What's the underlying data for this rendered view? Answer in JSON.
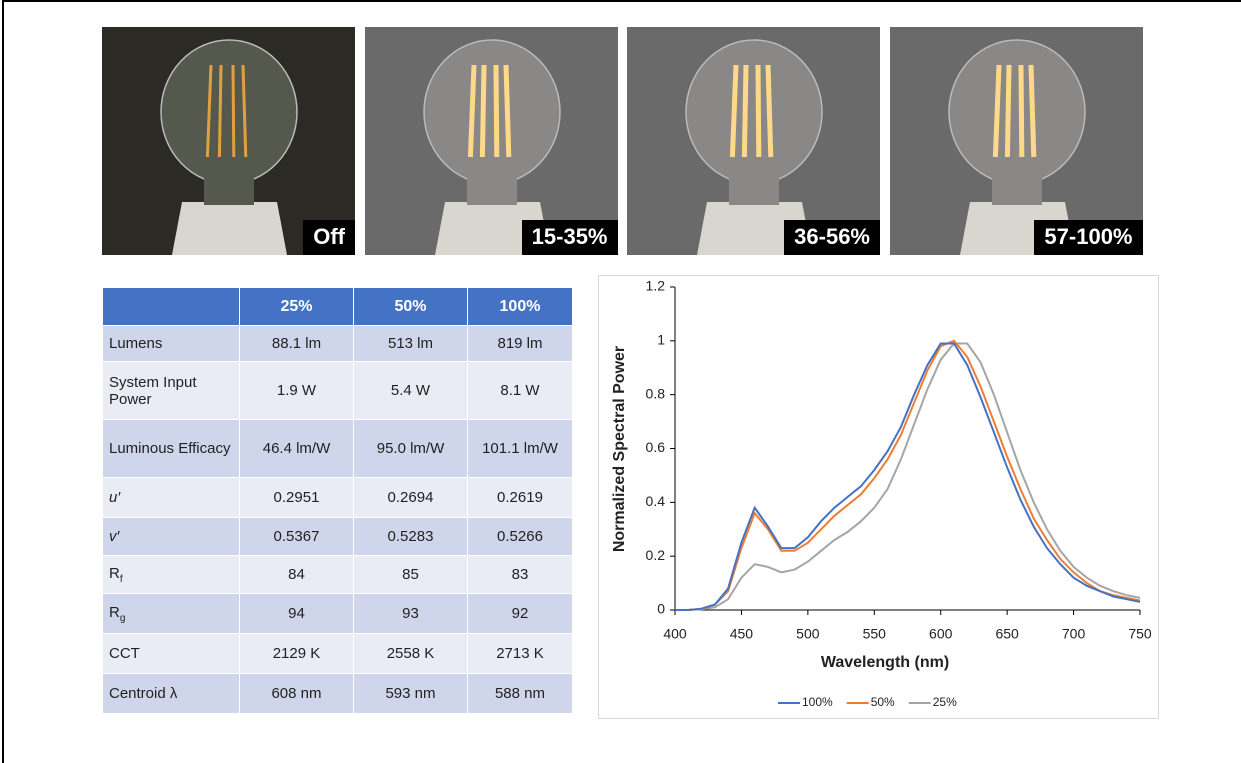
{
  "photos": [
    {
      "label": "Off",
      "lit": false
    },
    {
      "label": "15-35%",
      "lit": true
    },
    {
      "label": "36-56%",
      "lit": true
    },
    {
      "label": "57-100%",
      "lit": true
    }
  ],
  "table": {
    "columns": [
      "25%",
      "50%",
      "100%"
    ],
    "rows": [
      {
        "label": "Lumens",
        "cells": [
          "88.1 lm",
          "513 lm",
          "819 lm"
        ]
      },
      {
        "label": "System Input Power",
        "cells": [
          "1.9 W",
          "5.4 W",
          "8.1 W"
        ]
      },
      {
        "label": "Luminous Efficacy",
        "cells": [
          "46.4 lm/W",
          "95.0 lm/W",
          "101.1 lm/W"
        ]
      },
      {
        "label": "u′",
        "italic": true,
        "cells": [
          "0.2951",
          "0.2694",
          "0.2619"
        ]
      },
      {
        "label": "v′",
        "italic": true,
        "cells": [
          "0.5367",
          "0.5283",
          "0.5266"
        ]
      },
      {
        "label": "R",
        "sub": "f",
        "cells": [
          "84",
          "85",
          "83"
        ]
      },
      {
        "label": "R",
        "sub": "g",
        "cells": [
          "94",
          "93",
          "92"
        ]
      },
      {
        "label": "CCT",
        "cells": [
          "2129 K",
          "2558 K",
          "2713 K"
        ]
      },
      {
        "label": "Centroid λ",
        "cells": [
          "608 nm",
          "593 nm",
          "588 nm"
        ]
      }
    ]
  },
  "chart_data": {
    "type": "line",
    "xlabel": "Wavelength (nm)",
    "ylabel": "Normalized Spectral Power",
    "x": [
      400,
      410,
      420,
      430,
      440,
      450,
      460,
      470,
      480,
      490,
      500,
      510,
      520,
      530,
      540,
      550,
      560,
      570,
      580,
      590,
      600,
      610,
      620,
      630,
      640,
      650,
      660,
      670,
      680,
      690,
      700,
      710,
      720,
      730,
      740,
      750
    ],
    "series": [
      {
        "name": "100%",
        "color": "#4472c4",
        "values": [
          0,
          0,
          0.005,
          0.02,
          0.08,
          0.25,
          0.38,
          0.31,
          0.23,
          0.23,
          0.27,
          0.33,
          0.38,
          0.42,
          0.46,
          0.52,
          0.59,
          0.68,
          0.8,
          0.91,
          0.99,
          0.99,
          0.91,
          0.79,
          0.66,
          0.53,
          0.41,
          0.31,
          0.23,
          0.17,
          0.12,
          0.09,
          0.07,
          0.05,
          0.04,
          0.03
        ]
      },
      {
        "name": "50%",
        "color": "#ed7d31",
        "values": [
          0,
          0,
          0.005,
          0.02,
          0.07,
          0.23,
          0.36,
          0.3,
          0.22,
          0.22,
          0.25,
          0.3,
          0.35,
          0.39,
          0.43,
          0.49,
          0.56,
          0.65,
          0.77,
          0.89,
          0.98,
          1.0,
          0.94,
          0.83,
          0.7,
          0.57,
          0.45,
          0.34,
          0.26,
          0.19,
          0.14,
          0.1,
          0.07,
          0.055,
          0.045,
          0.035
        ]
      },
      {
        "name": "25%",
        "color": "#a5a5a5",
        "values": [
          0,
          0,
          0.003,
          0.01,
          0.04,
          0.12,
          0.17,
          0.16,
          0.14,
          0.15,
          0.18,
          0.22,
          0.26,
          0.29,
          0.33,
          0.38,
          0.45,
          0.56,
          0.69,
          0.82,
          0.93,
          0.99,
          0.99,
          0.92,
          0.8,
          0.66,
          0.52,
          0.4,
          0.3,
          0.22,
          0.16,
          0.12,
          0.09,
          0.07,
          0.055,
          0.045
        ]
      }
    ],
    "xlim": [
      400,
      750
    ],
    "xticks": [
      400,
      450,
      500,
      550,
      600,
      650,
      700,
      750
    ],
    "ylim": [
      0,
      1.2
    ],
    "yticks": [
      0,
      0.2,
      0.4,
      0.6,
      0.8,
      1,
      1.2
    ],
    "grid": false,
    "legend": "bottom"
  }
}
